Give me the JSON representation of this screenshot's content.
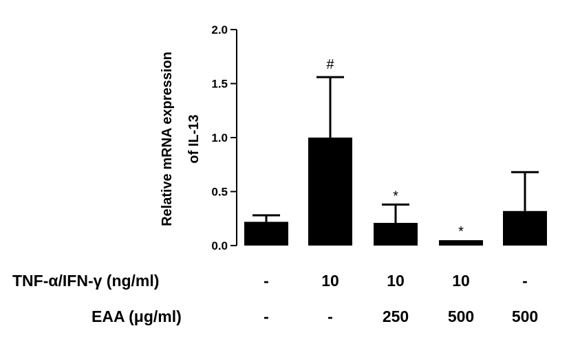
{
  "chart_data": {
    "type": "bar",
    "ylabel_line1": "Relative mRNA expression",
    "ylabel_line2": "of IL-13",
    "ylim": [
      0,
      2.0
    ],
    "yticks": [
      "0.0",
      "0.5",
      "1.0",
      "1.5",
      "2.0"
    ],
    "ytick_values": [
      0,
      0.5,
      1.0,
      1.5,
      2.0
    ],
    "values": [
      0.22,
      1.0,
      0.21,
      0.05,
      0.32
    ],
    "errors": [
      0.06,
      0.56,
      0.17,
      0.0,
      0.36
    ],
    "annotations": [
      "",
      "#",
      "*",
      "*",
      ""
    ],
    "bar_color": "#000000"
  },
  "table": {
    "rows": [
      {
        "label": "TNF-α/IFN-γ (ng/ml)",
        "cells": [
          "-",
          "10",
          "10",
          "10",
          "-"
        ]
      },
      {
        "label": "EAA (μg/ml)",
        "cells": [
          "-",
          "-",
          "250",
          "500",
          "500"
        ]
      }
    ]
  }
}
